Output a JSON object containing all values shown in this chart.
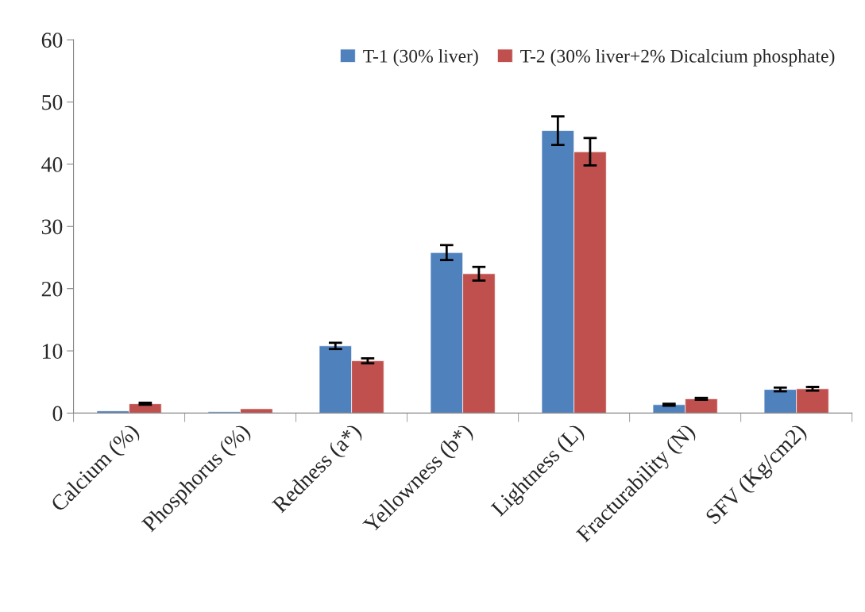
{
  "chart_data": {
    "type": "bar",
    "categories": [
      "Calcium (%)",
      "Phosphorus (%)",
      "Redness (a*)",
      "Yellowness (b*)",
      "Lightness (L)",
      "Fracturability (N)",
      "SFV (Kg/cm2)"
    ],
    "series": [
      {
        "name": "T-1 (30% liver)",
        "color": "#4f81bd",
        "values": [
          0.35,
          0.2,
          10.8,
          25.8,
          45.4,
          1.35,
          3.8
        ],
        "errors": [
          null,
          null,
          0.5,
          1.2,
          2.3,
          0.15,
          0.3
        ]
      },
      {
        "name": "T-2 (30% liver+2% Dicalcium phosphate)",
        "color": "#c0504d",
        "values": [
          1.5,
          0.7,
          8.4,
          22.4,
          42.0,
          2.3,
          3.9
        ],
        "errors": [
          0.15,
          null,
          0.4,
          1.1,
          2.2,
          0.15,
          0.3
        ]
      }
    ],
    "ylim": [
      0,
      60
    ],
    "yticks": [
      0,
      10,
      20,
      30,
      40,
      50,
      60
    ],
    "grid": false,
    "legend": "top right"
  }
}
